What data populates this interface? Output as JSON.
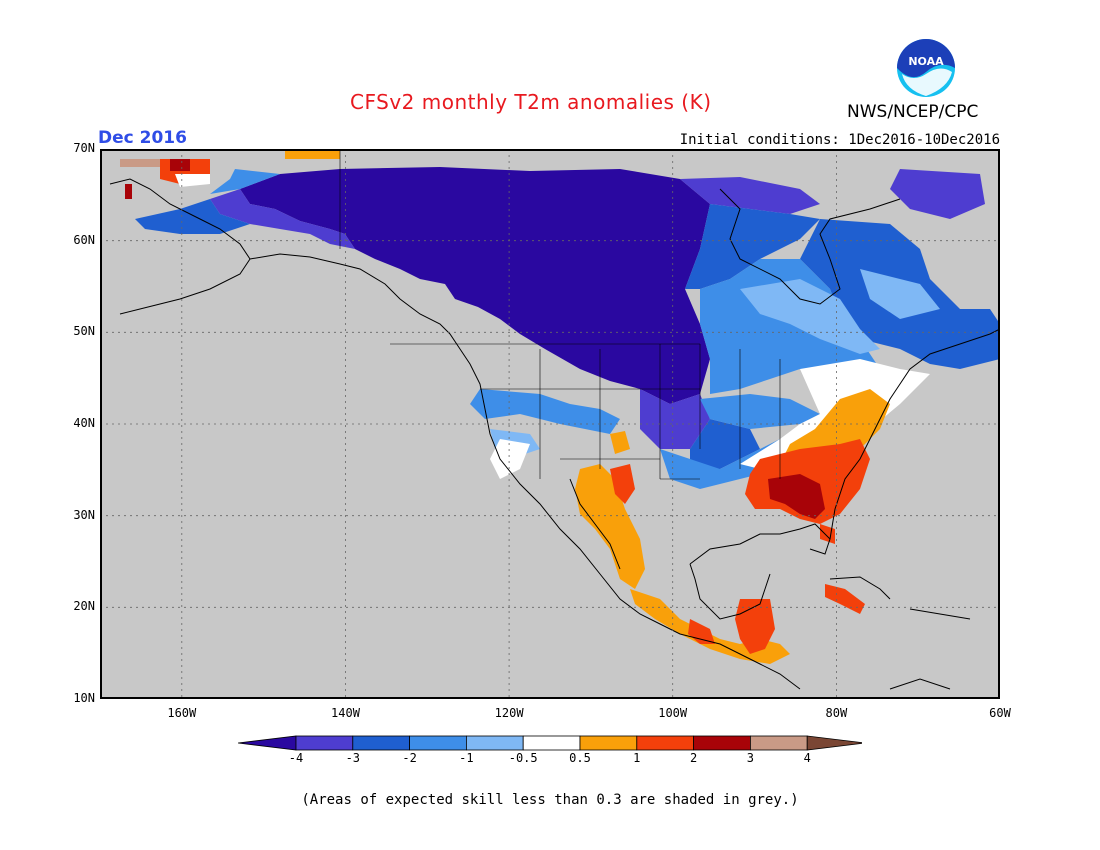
{
  "title": "CFSv2 monthly T2m anomalies (K)",
  "agency": "NWS/NCEP/CPC",
  "logo_text": "NOAA",
  "month_label": "Dec 2016",
  "initial_conditions": "Initial conditions: 1Dec2016-10Dec2016",
  "footnote": "(Areas of expected skill less than 0.3 are shaded in grey.)",
  "lat_labels": [
    "70N",
    "60N",
    "50N",
    "40N",
    "30N",
    "20N",
    "10N"
  ],
  "lon_labels": [
    "160W",
    "140W",
    "120W",
    "100W",
    "80W",
    "60W"
  ],
  "colorbar": {
    "labels": [
      "-4",
      "-3",
      "-2",
      "-1",
      "-0.5",
      "0.5",
      "1",
      "2",
      "3",
      "4"
    ],
    "colors": [
      "#2a08a0",
      "#4e3dd0",
      "#1f5fd0",
      "#3e8ee8",
      "#7fb8f5",
      "#ffffff",
      "#f9a00a",
      "#f3400b",
      "#a80308",
      "#c99a86",
      "#7a4634"
    ]
  },
  "colors": {
    "grey_skill_mask": "#c8c8c8",
    "title": "#e8191f",
    "month": "#2f4de6"
  }
}
